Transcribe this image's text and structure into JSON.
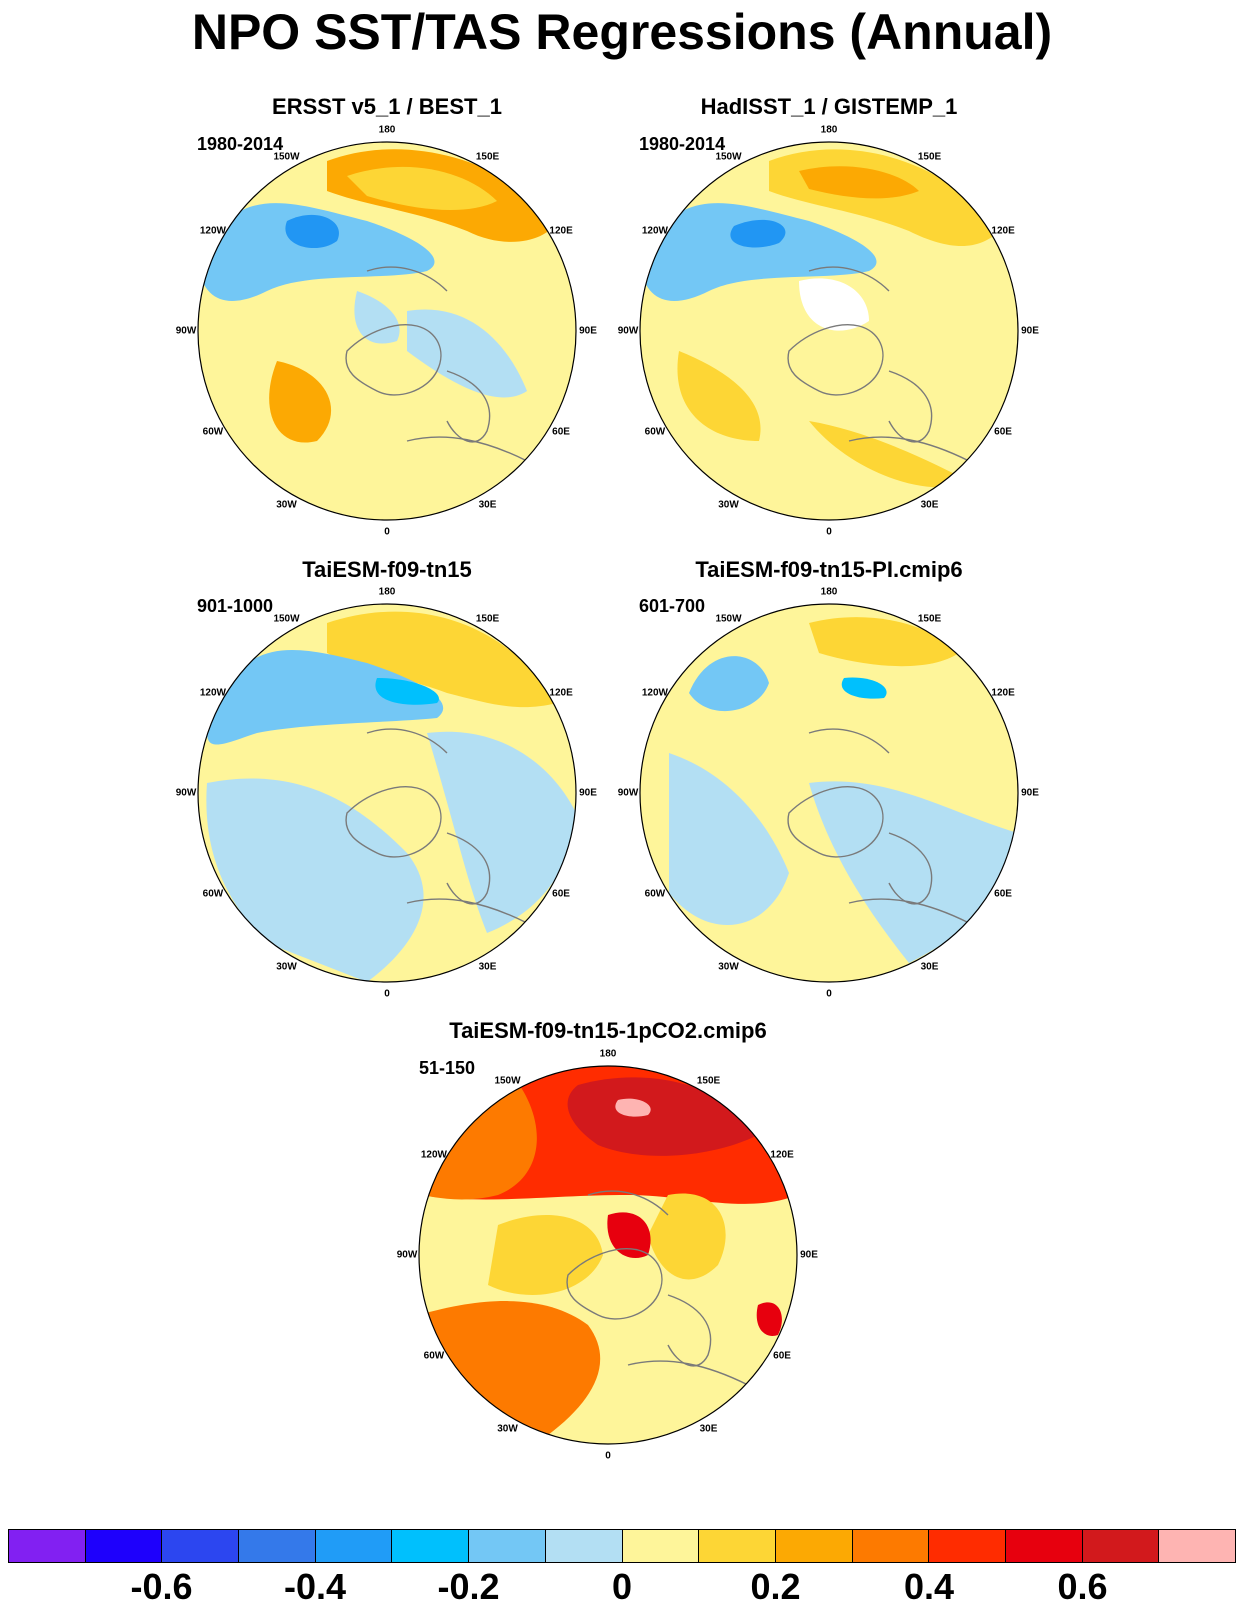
{
  "title": "NPO SST/TAS Regressions (Annual)",
  "chart_data": [
    {
      "type": "heatmap",
      "projection": "polar-stereographic",
      "title": "ERSST v5_1 / BEST_1",
      "period": "1980-2014",
      "longitude_labels": [
        "180",
        "150E",
        "120E",
        "90E",
        "60E",
        "30E",
        "0",
        "30W",
        "60W",
        "90W",
        "120W",
        "150W"
      ],
      "background": "#fef59a",
      "features": [
        {
          "region": "North Pacific ring, 170E-140W",
          "value": 0.3,
          "color": "#fca903"
        },
        {
          "region": "North Pacific ring core",
          "value": 0.2,
          "color": "#fdd635"
        },
        {
          "region": "Gulf of Alaska / NE Pacific",
          "value": -0.3,
          "color": "#73c7f5"
        },
        {
          "region": "Gulf of Alaska core",
          "value": -0.4,
          "color": "#2196f3"
        },
        {
          "region": "Arctic Ocean / Barents Sea",
          "value": -0.1,
          "color": "#b3dff3"
        },
        {
          "region": "Western North Atlantic / Labrador Sea",
          "value": 0.3,
          "color": "#fca903"
        }
      ]
    },
    {
      "type": "heatmap",
      "projection": "polar-stereographic",
      "title": "HadISST_1 / GISTEMP_1",
      "period": "1980-2014",
      "longitude_labels": [
        "180",
        "150E",
        "120E",
        "90E",
        "60E",
        "30E",
        "0",
        "30W",
        "60W",
        "90W",
        "120W",
        "150W"
      ],
      "background": "#fef59a",
      "features": [
        {
          "region": "North Pacific ring",
          "value": 0.2,
          "color": "#fdd635"
        },
        {
          "region": "North Pacific ring core",
          "value": 0.3,
          "color": "#fca903"
        },
        {
          "region": "Gulf of Alaska",
          "value": -0.3,
          "color": "#73c7f5"
        },
        {
          "region": "Gulf of Alaska core",
          "value": -0.4,
          "color": "#2196f3"
        },
        {
          "region": "Arctic sea ice (missing)",
          "value": null,
          "color": "#ffffff"
        },
        {
          "region": "North Atlantic",
          "value": 0.2,
          "color": "#fdd635"
        }
      ]
    },
    {
      "type": "heatmap",
      "projection": "polar-stereographic",
      "title": "TaiESM-f09-tn15",
      "period": "901-1000",
      "longitude_labels": [
        "180",
        "150E",
        "120E",
        "90E",
        "60E",
        "30E",
        "0",
        "30W",
        "60W",
        "90W",
        "120W",
        "150W"
      ],
      "background": "#fef59a",
      "features": [
        {
          "region": "North Pacific ring",
          "value": 0.2,
          "color": "#fdd635"
        },
        {
          "region": "Gulf of Alaska",
          "value": -0.3,
          "color": "#73c7f5"
        },
        {
          "region": "Gulf of Alaska core",
          "value": -0.4,
          "color": "#00c0fd"
        },
        {
          "region": "Eurasia / Arctic / Atlantic",
          "value": -0.1,
          "color": "#b3dff3"
        }
      ]
    },
    {
      "type": "heatmap",
      "projection": "polar-stereographic",
      "title": "TaiESM-f09-tn15-PI.cmip6",
      "period": "601-700",
      "longitude_labels": [
        "180",
        "150E",
        "120E",
        "90E",
        "60E",
        "30E",
        "0",
        "30W",
        "60W",
        "90W",
        "120W",
        "150W"
      ],
      "background": "#fef59a",
      "features": [
        {
          "region": "North Pacific",
          "value": 0.2,
          "color": "#fdd635"
        },
        {
          "region": "Gulf of Alaska",
          "value": -0.3,
          "color": "#73c7f5"
        },
        {
          "region": "Bering Sea core",
          "value": -0.4,
          "color": "#00c0fd"
        },
        {
          "region": "Eurasia / Atlantic",
          "value": -0.1,
          "color": "#b3dff3"
        }
      ]
    },
    {
      "type": "heatmap",
      "projection": "polar-stereographic",
      "title": "TaiESM-f09-tn15-1pCO2.cmip6",
      "period": "51-150",
      "longitude_labels": [
        "180",
        "150E",
        "120E",
        "90E",
        "60E",
        "30E",
        "0",
        "30W",
        "60W",
        "90W",
        "120W",
        "150W"
      ],
      "background": "#fef59a",
      "features": [
        {
          "region": "North Pacific",
          "value": 0.5,
          "color": "#ff2c00"
        },
        {
          "region": "NW Pacific core",
          "value": 0.7,
          "color": "#d2191c"
        },
        {
          "region": "NW Pacific max",
          "value": 0.8,
          "color": "#feb4b2"
        },
        {
          "region": "Gulf of Alaska",
          "value": 0.4,
          "color": "#fd7a00"
        },
        {
          "region": "North Atlantic",
          "value": 0.4,
          "color": "#fd7a00"
        },
        {
          "region": "Greenland / Arctic",
          "value": 0.2,
          "color": "#fdd635"
        },
        {
          "region": "Barents / Kara Sea",
          "value": 0.6,
          "color": "#e7000e"
        }
      ]
    }
  ],
  "colorbar": {
    "colors": [
      "#8220f2",
      "#1e00fc",
      "#2c46f0",
      "#3479ea",
      "#209cf7",
      "#00c0fd",
      "#73c7f5",
      "#b3dff3",
      "#fef59a",
      "#fdd635",
      "#fca903",
      "#fd7a00",
      "#ff2c00",
      "#e7000e",
      "#d2191c",
      "#feb4b2"
    ],
    "labels": [
      "-0.6",
      "-0.4",
      "-0.2",
      "0",
      "0.2",
      "0.4",
      "0.6"
    ],
    "label_values": [
      -0.6,
      -0.4,
      -0.2,
      0,
      0.2,
      0.4,
      0.6
    ],
    "range": [
      -0.8,
      0.8
    ],
    "interval": 0.1
  }
}
